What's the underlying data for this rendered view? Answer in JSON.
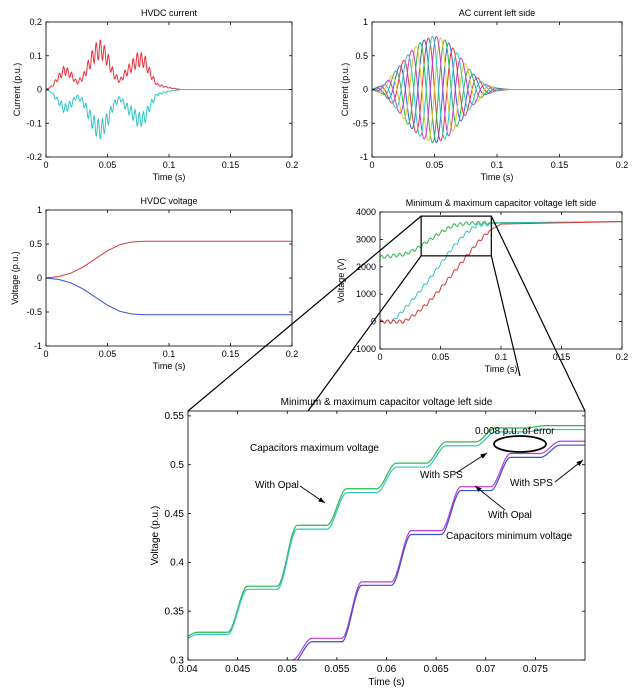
{
  "chart_data": [
    {
      "type": "line",
      "title": "HVDC current",
      "xlabel": "Time (s)",
      "ylabel": "Current (p.u.)",
      "xlim": [
        0,
        0.2
      ],
      "ylim": [
        -0.2,
        0.2
      ],
      "xticks": [
        "0",
        "0.05",
        "0.1",
        "0.15",
        "0.2"
      ],
      "yticks": [
        "-0.2",
        "-0.1",
        "0",
        "0.1",
        "0.2"
      ],
      "grid": false,
      "series": [
        {
          "color": "#e8323c",
          "x": [
            0,
            0.005,
            0.01,
            0.015,
            0.02,
            0.025,
            0.03,
            0.035,
            0.04,
            0.045,
            0.05,
            0.055,
            0.06,
            0.065,
            0.07,
            0.075,
            0.08,
            0.085,
            0.09,
            0.1,
            0.11,
            0.2
          ],
          "values": [
            0,
            0.01,
            0.035,
            0.058,
            0.045,
            0.02,
            0.035,
            0.075,
            0.11,
            0.12,
            0.09,
            0.045,
            0.025,
            0.05,
            0.07,
            0.09,
            0.085,
            0.045,
            0.015,
            0.005,
            0,
            0
          ]
        },
        {
          "color": "#33c4c4",
          "x": [
            0,
            0.005,
            0.01,
            0.015,
            0.02,
            0.025,
            0.03,
            0.035,
            0.04,
            0.045,
            0.05,
            0.055,
            0.06,
            0.065,
            0.07,
            0.075,
            0.08,
            0.085,
            0.09,
            0.1,
            0.11,
            0.2
          ],
          "values": [
            0,
            -0.01,
            -0.035,
            -0.058,
            -0.045,
            -0.02,
            -0.035,
            -0.075,
            -0.11,
            -0.12,
            -0.09,
            -0.045,
            -0.025,
            -0.05,
            -0.07,
            -0.09,
            -0.085,
            -0.045,
            -0.015,
            -0.005,
            0,
            0
          ]
        }
      ]
    },
    {
      "type": "line",
      "title": "AC current left side",
      "xlabel": "Time (s)",
      "ylabel": "Current (p.u.)",
      "xlim": [
        0,
        0.2
      ],
      "ylim": [
        -1,
        1
      ],
      "xticks": [
        "0",
        "0.05",
        "0.1",
        "0.15",
        "0.2"
      ],
      "yticks": [
        "-1",
        "-0.5",
        "0",
        "0.5",
        "1"
      ],
      "grid": false,
      "frequency_hz": 50,
      "envelope": {
        "x": [
          0,
          0.01,
          0.02,
          0.03,
          0.04,
          0.05,
          0.06,
          0.07,
          0.08,
          0.09,
          0.1,
          0.11,
          0.2
        ],
        "values": [
          0,
          0.08,
          0.3,
          0.55,
          0.72,
          0.8,
          0.72,
          0.5,
          0.25,
          0.08,
          0.02,
          0,
          0
        ]
      },
      "series": [
        {
          "color": "#e83a3a",
          "phase_deg": 0
        },
        {
          "color": "#3b63d8",
          "phase_deg": 60
        },
        {
          "color": "#2db84a",
          "phase_deg": 120
        },
        {
          "color": "#e3c82d",
          "phase_deg": 180
        },
        {
          "color": "#c23ccf",
          "phase_deg": 240
        },
        {
          "color": "#33c4c4",
          "phase_deg": 300
        }
      ]
    },
    {
      "type": "line",
      "title": "HVDC voltage",
      "xlabel": "Time (s)",
      "ylabel": "Voltage (p.u.)",
      "xlim": [
        0,
        0.2
      ],
      "ylim": [
        -1,
        1
      ],
      "xticks": [
        "0",
        "0.05",
        "0.1",
        "0.15",
        "0.2"
      ],
      "yticks": [
        "-1",
        "-0.5",
        "0",
        "0.5",
        "1"
      ],
      "grid": false,
      "series": [
        {
          "color": "#d63a3a",
          "x": [
            0,
            0.01,
            0.02,
            0.03,
            0.04,
            0.05,
            0.06,
            0.07,
            0.08,
            0.09,
            0.2
          ],
          "values": [
            0,
            0.02,
            0.07,
            0.16,
            0.28,
            0.4,
            0.49,
            0.53,
            0.54,
            0.54,
            0.54
          ]
        },
        {
          "color": "#3a4fd6",
          "x": [
            0,
            0.01,
            0.02,
            0.03,
            0.04,
            0.05,
            0.06,
            0.07,
            0.08,
            0.09,
            0.2
          ],
          "values": [
            0,
            -0.02,
            -0.07,
            -0.16,
            -0.28,
            -0.4,
            -0.49,
            -0.53,
            -0.54,
            -0.54,
            -0.54
          ]
        }
      ]
    },
    {
      "type": "line",
      "title": "Minimum & maximum capacitor voltage left side",
      "xlabel": "Time (s)",
      "ylabel": "Voltage (V)",
      "xlim": [
        0,
        0.2
      ],
      "ylim": [
        -1000,
        4000
      ],
      "xticks": [
        "0",
        "0.05",
        "0.1",
        "0.15",
        "0.2"
      ],
      "yticks": [
        "-1000",
        "0",
        "1000",
        "2000",
        "3000",
        "4000"
      ],
      "grid": false,
      "series": [
        {
          "color": "#2db84a",
          "x": [
            0,
            0.02,
            0.03,
            0.04,
            0.05,
            0.06,
            0.07,
            0.08,
            0.1,
            0.2
          ],
          "values": [
            2350,
            2450,
            2650,
            2950,
            3250,
            3500,
            3580,
            3600,
            3610,
            3650
          ]
        },
        {
          "color": "#33c4c4",
          "x": [
            0,
            0.01,
            0.02,
            0.03,
            0.04,
            0.05,
            0.06,
            0.07,
            0.08,
            0.1,
            0.2
          ],
          "values": [
            0,
            0,
            450,
            950,
            1500,
            2100,
            2700,
            3200,
            3520,
            3600,
            3650
          ]
        },
        {
          "color": "#d63a3a",
          "x": [
            0,
            0.01,
            0.02,
            0.03,
            0.04,
            0.05,
            0.06,
            0.07,
            0.08,
            0.09,
            0.1,
            0.2
          ],
          "values": [
            0,
            0,
            0,
            300,
            700,
            1200,
            1750,
            2300,
            2850,
            3300,
            3560,
            3650
          ]
        }
      ],
      "zoom_box": {
        "xlim": [
          0.034,
          0.092
        ],
        "ylim": [
          2400,
          3850
        ]
      }
    },
    {
      "type": "line",
      "title": "Minimum & maximum capacitor voltage left side",
      "xlabel": "Time (s)",
      "ylabel": "Voltage (p.u.)",
      "xlim": [
        0.04,
        0.08
      ],
      "ylim": [
        0.3,
        0.555
      ],
      "xticks": [
        "0.04",
        "0.045",
        "0.05",
        "0.055",
        "0.06",
        "0.065",
        "0.07",
        "0.075"
      ],
      "yticks": [
        "0.3",
        "0.35",
        "0.4",
        "0.45",
        "0.5",
        "0.55"
      ],
      "grid": false,
      "step_period": 0.005,
      "series": [
        {
          "color": "#2db84a",
          "x": [
            0.04,
            0.045,
            0.05,
            0.055,
            0.06,
            0.065,
            0.07,
            0.075,
            0.08
          ],
          "values": [
            0.32,
            0.362,
            0.43,
            0.47,
            0.497,
            0.52,
            0.537,
            0.54,
            0.54
          ]
        },
        {
          "color": "#33c4c4",
          "x": [
            0.04,
            0.045,
            0.05,
            0.055,
            0.06,
            0.065,
            0.07,
            0.075,
            0.08
          ],
          "values": [
            0.318,
            0.359,
            0.426,
            0.466,
            0.493,
            0.516,
            0.533,
            0.536,
            0.536
          ]
        },
        {
          "color": "#c23ccf",
          "x": [
            0.0505,
            0.055,
            0.06,
            0.065,
            0.07,
            0.075,
            0.08
          ],
          "values": [
            0.3,
            0.35,
            0.41,
            0.455,
            0.5,
            0.523,
            0.525
          ]
        },
        {
          "color": "#3a4fd6",
          "x": [
            0.0505,
            0.055,
            0.06,
            0.065,
            0.07,
            0.075,
            0.08
          ],
          "values": [
            0.296,
            0.347,
            0.406,
            0.451,
            0.496,
            0.519,
            0.521
          ]
        }
      ],
      "annotations": {
        "error_label": "0.008 p.u. of error",
        "max_label": "Capacitors maximum voltage",
        "min_label": "Capacitors minimum voltage",
        "opal_top": "With Opal",
        "sps_left": "With SPS",
        "sps_right": "With SPS",
        "opal_bottom": "With Opal"
      }
    }
  ]
}
